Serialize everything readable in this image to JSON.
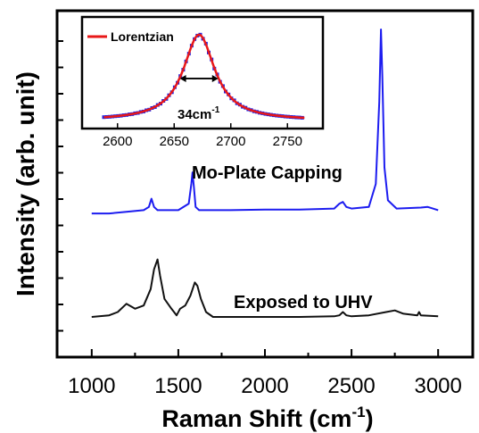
{
  "chart_data": [
    {
      "type": "line",
      "xlabel": "Raman Shift (cm",
      "xlabel_sup": "-1",
      "xlabel_close": ")",
      "ylabel": "Intensity (arb. unit)",
      "xlim": [
        800,
        3200
      ],
      "x_ticks": [
        1000,
        1500,
        2000,
        2500,
        3000
      ],
      "ylim": [
        0,
        1
      ],
      "y_tick_labels_shown": false,
      "grid": false,
      "annotations": [
        {
          "text": "Mo-Plate Capping",
          "series": 0
        },
        {
          "text": "Exposed to UHV",
          "series": 1
        }
      ],
      "series": [
        {
          "color": "#1c1cf0",
          "x": [
            1000,
            1100,
            1200,
            1300,
            1330,
            1345,
            1360,
            1380,
            1450,
            1500,
            1560,
            1575,
            1582,
            1590,
            1600,
            1620,
            1700,
            1800,
            2000,
            2200,
            2400,
            2430,
            2450,
            2470,
            2500,
            2600,
            2640,
            2660,
            2670,
            2678,
            2690,
            2710,
            2760,
            2900,
            2940,
            2970,
            3000
          ],
          "y": [
            0.41,
            0.41,
            0.415,
            0.42,
            0.43,
            0.455,
            0.43,
            0.42,
            0.42,
            0.42,
            0.44,
            0.5,
            0.535,
            0.49,
            0.43,
            0.42,
            0.42,
            0.42,
            0.422,
            0.422,
            0.425,
            0.44,
            0.445,
            0.43,
            0.425,
            0.43,
            0.5,
            0.75,
            0.97,
            0.83,
            0.55,
            0.45,
            0.425,
            0.428,
            0.43,
            0.425,
            0.42
          ]
        },
        {
          "color": "#111111",
          "x": [
            1000,
            1100,
            1150,
            1200,
            1250,
            1300,
            1340,
            1360,
            1380,
            1395,
            1420,
            1460,
            1490,
            1510,
            1540,
            1570,
            1595,
            1610,
            1630,
            1660,
            1700,
            1800,
            2000,
            2200,
            2400,
            2430,
            2450,
            2470,
            2500,
            2600,
            2700,
            2750,
            2800,
            2880,
            2890,
            2900,
            3000
          ],
          "y": [
            0.095,
            0.1,
            0.11,
            0.135,
            0.12,
            0.13,
            0.18,
            0.24,
            0.27,
            0.22,
            0.15,
            0.12,
            0.1,
            0.12,
            0.13,
            0.16,
            0.2,
            0.19,
            0.15,
            0.11,
            0.095,
            0.095,
            0.095,
            0.095,
            0.097,
            0.1,
            0.11,
            0.1,
            0.097,
            0.1,
            0.11,
            0.115,
            0.105,
            0.1,
            0.11,
            0.1,
            0.097
          ]
        }
      ]
    },
    {
      "type": "line",
      "xlim": [
        2575,
        2775
      ],
      "x_ticks": [
        2600,
        2650,
        2700,
        2750
      ],
      "ylim": [
        0,
        1.05
      ],
      "legend": {
        "label": "Lorentzian",
        "placement": "top-left"
      },
      "annotations": [
        {
          "text": "34cm",
          "sup": "-1"
        }
      ],
      "fwhm_markers": [
        2655,
        2689
      ],
      "lorentzian_fit": {
        "center": 2672,
        "fwhm": 34,
        "amplitude": 1.0,
        "baseline": 0.02,
        "color": "#e81818",
        "x_range": [
          2588,
          2765
        ]
      },
      "data_points": {
        "color": "#2020e0",
        "x_start": 2588,
        "x_end": 2765,
        "step": 2.5
      }
    }
  ]
}
